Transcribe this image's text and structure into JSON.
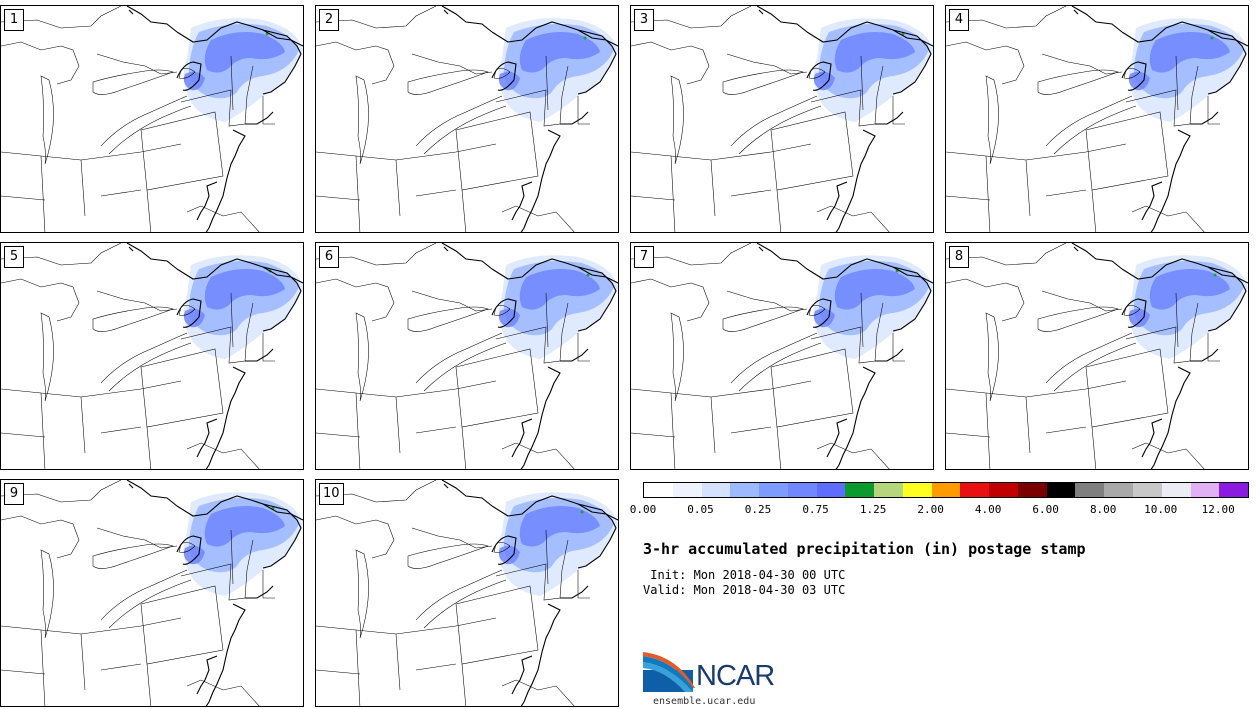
{
  "panels": [
    {
      "label": "1"
    },
    {
      "label": "2"
    },
    {
      "label": "3"
    },
    {
      "label": "4"
    },
    {
      "label": "5"
    },
    {
      "label": "6"
    },
    {
      "label": "7"
    },
    {
      "label": "8"
    },
    {
      "label": "9"
    },
    {
      "label": "10"
    }
  ],
  "colorbar": {
    "colors": [
      "#ffffff",
      "#eef3ff",
      "#d5e2ff",
      "#9db9ff",
      "#7e9cff",
      "#7087ff",
      "#5f6dff",
      "#0a9a2d",
      "#b5d67a",
      "#ffff22",
      "#ff9b00",
      "#e81010",
      "#c00000",
      "#7a0000",
      "#000000",
      "#7f7f7f",
      "#a9a9a9",
      "#c8c8c8",
      "#ececf4",
      "#e2b0f4",
      "#8b1be0"
    ],
    "ticks": [
      "0.00",
      "0.05",
      "0.25",
      "0.75",
      "1.25",
      "2.00",
      "4.00",
      "6.00",
      "8.00",
      "10.00",
      "12.00"
    ]
  },
  "title": "3-hr accumulated precipitation (in) postage stamp",
  "init_line": " Init: Mon 2018-04-30 00 UTC",
  "valid_line": "Valid: Mon 2018-04-30 03 UTC",
  "logo_text": "NCAR",
  "url": "ensemble.ucar.edu",
  "precip_colors": {
    "light": "#dde8ff",
    "mid": "#9db9ff",
    "heavy": "#6f86ff",
    "peak": "#1fa03a"
  }
}
